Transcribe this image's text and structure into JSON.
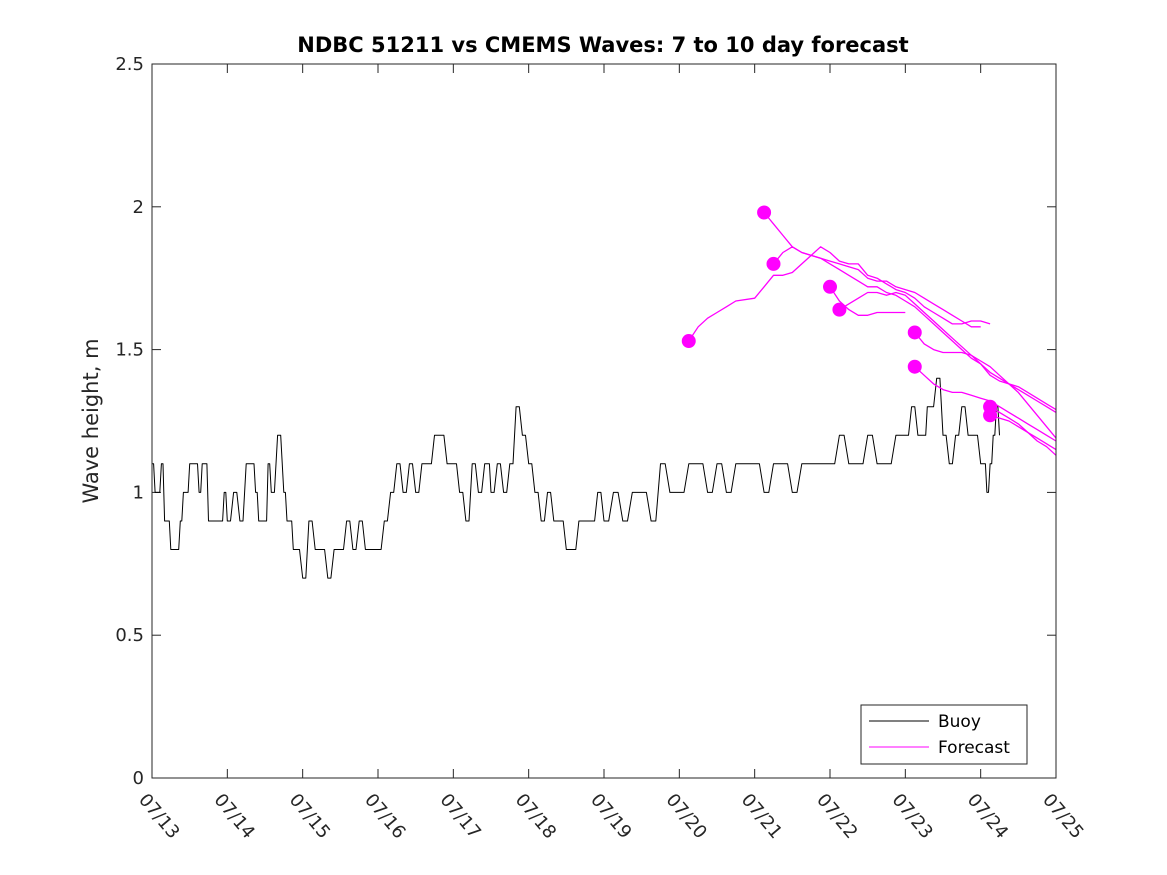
{
  "chart_data": {
    "type": "line",
    "title": "NDBC 51211 vs CMEMS Waves: 7 to 10 day forecast",
    "xlabel": "",
    "ylabel": "Wave height, m",
    "xlim": [
      "07/13",
      "07/25"
    ],
    "ylim": [
      0,
      2.5
    ],
    "x_ticks": [
      "07/13",
      "07/14",
      "07/15",
      "07/16",
      "07/17",
      "07/18",
      "07/19",
      "07/20",
      "07/21",
      "07/22",
      "07/23",
      "07/24",
      "07/25"
    ],
    "y_ticks": [
      "0",
      "0.5",
      "1",
      "1.5",
      "2",
      "2.5"
    ],
    "grid": false,
    "legend": {
      "position": "bottom-right",
      "entries": [
        "Buoy",
        "Forecast"
      ]
    },
    "colors": {
      "buoy": "#000000",
      "forecast": "#ff00ff"
    },
    "series": [
      {
        "name": "Buoy",
        "x": [
          "07/13 00:00",
          "07/13 01:00",
          "07/13 02:00",
          "07/13 03:00",
          "07/13 04:00",
          "07/13 05:00",
          "07/13 06:00",
          "07/13 07:00",
          "07/13 08:00",
          "07/13 09:00",
          "07/13 10:00",
          "07/13 11:00",
          "07/13 12:00",
          "07/13 13:00",
          "07/13 14:00",
          "07/13 15:00",
          "07/13 16:00",
          "07/13 17:00",
          "07/13 18:00",
          "07/13 19:00",
          "07/13 20:00",
          "07/13 21:00",
          "07/13 22:00",
          "07/13 23:00",
          "07/14 00:00",
          "07/14 02:00",
          "07/14 04:00",
          "07/14 06:00",
          "07/14 08:00",
          "07/14 09:00",
          "07/14 10:00",
          "07/14 12:00",
          "07/14 13:00",
          "07/14 14:00",
          "07/14 16:00",
          "07/14 18:00",
          "07/14 19:00",
          "07/14 20:00",
          "07/14 21:00",
          "07/14 22:00",
          "07/15 00:00",
          "07/15 02:00",
          "07/15 04:00",
          "07/15 06:00",
          "07/15 08:00",
          "07/15 10:00",
          "07/15 12:00",
          "07/15 14:00",
          "07/15 16:00",
          "07/15 18:00",
          "07/15 20:00",
          "07/15 22:00",
          "07/16 00:00",
          "07/16 02:00",
          "07/16 04:00",
          "07/16 06:00",
          "07/16 08:00",
          "07/16 10:00",
          "07/16 12:00",
          "07/16 14:00",
          "07/16 16:00",
          "07/16 18:00",
          "07/16 20:00",
          "07/16 22:00",
          "07/17 00:00",
          "07/17 02:00",
          "07/17 04:00",
          "07/17 06:00",
          "07/17 08:00",
          "07/17 10:00",
          "07/17 11:00",
          "07/17 12:00",
          "07/17 14:00",
          "07/17 16:00",
          "07/17 18:00",
          "07/17 20:00",
          "07/17 22:00",
          "07/18 00:00",
          "07/18 02:00",
          "07/18 04:00",
          "07/18 06:00",
          "07/18 08:00",
          "07/18 10:00",
          "07/18 12:00",
          "07/18 14:00",
          "07/18 16:00",
          "07/18 18:00",
          "07/18 20:00",
          "07/18 22:00",
          "07/19 00:00",
          "07/19 03:00",
          "07/19 06:00",
          "07/19 09:00",
          "07/19 12:00",
          "07/19 15:00",
          "07/19 18:00",
          "07/19 21:00",
          "07/20 00:00",
          "07/20 03:00",
          "07/20 06:00",
          "07/20 09:00",
          "07/20 12:00",
          "07/20 15:00",
          "07/20 18:00",
          "07/20 21:00",
          "07/21 00:00",
          "07/21 03:00",
          "07/21 06:00",
          "07/21 09:00",
          "07/21 12:00",
          "07/21 15:00",
          "07/21 18:00",
          "07/21 21:00",
          "07/22 00:00",
          "07/22 03:00",
          "07/22 06:00",
          "07/22 09:00",
          "07/22 12:00",
          "07/22 15:00",
          "07/22 18:00",
          "07/22 21:00",
          "07/23 00:00",
          "07/23 02:00",
          "07/23 04:00",
          "07/23 06:00",
          "07/23 07:00",
          "07/23 08:00",
          "07/23 10:00",
          "07/23 12:00",
          "07/23 14:00",
          "07/23 16:00",
          "07/23 18:00",
          "07/23 20:00",
          "07/23 22:00",
          "07/24 00:00",
          "07/24 01:00",
          "07/24 02:00",
          "07/24 03:00",
          "07/24 04:00",
          "07/24 05:00",
          "07/24 06:00"
        ],
        "values": [
          1.1,
          1.0,
          1.0,
          1.1,
          0.9,
          0.9,
          0.8,
          0.8,
          0.8,
          0.9,
          1.0,
          1.0,
          1.1,
          1.1,
          1.1,
          1.0,
          1.1,
          1.1,
          0.9,
          0.9,
          0.9,
          0.9,
          0.9,
          1.0,
          0.9,
          1.0,
          0.9,
          1.1,
          1.1,
          1.0,
          0.9,
          0.9,
          1.1,
          1.0,
          1.2,
          1.0,
          0.9,
          0.9,
          0.8,
          0.8,
          0.7,
          0.9,
          0.8,
          0.8,
          0.7,
          0.8,
          0.8,
          0.9,
          0.8,
          0.9,
          0.8,
          0.8,
          0.8,
          0.9,
          1.0,
          1.1,
          1.0,
          1.1,
          1.0,
          1.1,
          1.1,
          1.2,
          1.2,
          1.1,
          1.1,
          1.0,
          0.9,
          1.1,
          1.0,
          1.1,
          1.1,
          1.0,
          1.1,
          1.0,
          1.1,
          1.3,
          1.2,
          1.1,
          1.0,
          0.9,
          1.0,
          0.9,
          0.9,
          0.8,
          0.8,
          0.9,
          0.9,
          0.9,
          1.0,
          0.9,
          1.0,
          0.9,
          1.0,
          1.0,
          0.9,
          1.1,
          1.0,
          1.0,
          1.1,
          1.1,
          1.0,
          1.1,
          1.0,
          1.1,
          1.1,
          1.1,
          1.0,
          1.1,
          1.1,
          1.0,
          1.1,
          1.1,
          1.1,
          1.1,
          1.2,
          1.1,
          1.1,
          1.2,
          1.1,
          1.1,
          1.2,
          1.2,
          1.3,
          1.2,
          1.2,
          1.3,
          1.3,
          1.4,
          1.2,
          1.1,
          1.2,
          1.3,
          1.2,
          1.2,
          1.1,
          1.1,
          1.0,
          1.1,
          1.2,
          1.3,
          1.2
        ]
      },
      {
        "name": "Forecast",
        "x": [
          "07/20 03:00",
          "07/20 06:00",
          "07/20 09:00",
          "07/20 12:00",
          "07/20 15:00",
          "07/20 18:00",
          "07/21 00:00",
          "07/21 03:00",
          "07/21 06:00",
          "07/21 09:00",
          "07/21 12:00",
          "07/21 15:00",
          "07/21 18:00",
          "07/21 21:00",
          "07/22 00:00",
          "07/22 03:00",
          "07/22 06:00",
          "07/22 09:00",
          "07/22 12:00",
          "07/22 15:00",
          "07/22 18:00",
          "07/22 21:00",
          "07/23 00:00",
          "07/23 03:00",
          "07/23 06:00",
          "07/23 09:00",
          "07/23 12:00",
          "07/23 15:00",
          "07/23 18:00",
          "07/23 21:00",
          "07/24 00:00",
          "07/24 03:00"
        ],
        "values": [
          1.53,
          1.58,
          1.61,
          1.63,
          1.65,
          1.67,
          1.68,
          1.72,
          1.76,
          1.76,
          1.77,
          1.8,
          1.83,
          1.86,
          1.84,
          1.81,
          1.8,
          1.8,
          1.76,
          1.75,
          1.73,
          1.71,
          1.7,
          1.68,
          1.65,
          1.63,
          1.61,
          1.59,
          1.59,
          1.6,
          1.6,
          1.59
        ]
      },
      {
        "name": "Forecast",
        "x": [
          "07/21 03:00",
          "07/21 06:00",
          "07/21 09:00",
          "07/21 12:00",
          "07/21 15:00",
          "07/21 18:00",
          "07/21 21:00",
          "07/22 00:00",
          "07/22 03:00",
          "07/22 06:00",
          "07/22 09:00",
          "07/22 12:00",
          "07/22 15:00",
          "07/22 18:00",
          "07/22 21:00",
          "07/23 00:00",
          "07/23 03:00",
          "07/23 06:00",
          "07/23 09:00",
          "07/23 12:00",
          "07/23 15:00",
          "07/23 18:00",
          "07/23 21:00",
          "07/24 00:00",
          "07/24 03:00",
          "07/24 06:00",
          "07/24 09:00",
          "07/24 12:00",
          "07/24 15:00",
          "07/24 18:00",
          "07/24 21:00",
          "07/25 00:00"
        ],
        "values": [
          1.98,
          1.94,
          1.9,
          1.86,
          1.84,
          1.83,
          1.82,
          1.8,
          1.78,
          1.76,
          1.74,
          1.72,
          1.72,
          1.7,
          1.69,
          1.67,
          1.65,
          1.62,
          1.59,
          1.56,
          1.53,
          1.5,
          1.47,
          1.45,
          1.42,
          1.4,
          1.38,
          1.37,
          1.35,
          1.33,
          1.31,
          1.29
        ]
      },
      {
        "name": "Forecast",
        "x": [
          "07/22 03:00",
          "07/22 06:00",
          "07/22 09:00",
          "07/22 12:00",
          "07/22 15:00",
          "07/22 18:00",
          "07/22 21:00",
          "07/23 00:00",
          "07/23 03:00",
          "07/23 06:00",
          "07/23 09:00",
          "07/23 12:00",
          "07/23 15:00",
          "07/23 18:00",
          "07/23 21:00",
          "07/24 00:00",
          "07/24 03:00",
          "07/24 06:00",
          "07/24 09:00",
          "07/24 12:00",
          "07/24 15:00",
          "07/24 18:00",
          "07/24 21:00",
          "07/25 00:00"
        ],
        "values": [
          1.64,
          1.66,
          1.68,
          1.7,
          1.7,
          1.69,
          1.7,
          1.69,
          1.66,
          1.63,
          1.6,
          1.57,
          1.54,
          1.51,
          1.48,
          1.45,
          1.41,
          1.39,
          1.38,
          1.36,
          1.34,
          1.32,
          1.3,
          1.28
        ]
      },
      {
        "name": "Forecast",
        "x": [
          "07/21 06:00",
          "07/21 09:00",
          "07/21 12:00",
          "07/21 15:00",
          "07/21 18:00",
          "07/21 21:00",
          "07/22 00:00",
          "07/22 03:00",
          "07/22 06:00",
          "07/22 09:00",
          "07/22 12:00",
          "07/22 15:00",
          "07/22 18:00",
          "07/22 21:00",
          "07/23 00:00",
          "07/23 03:00",
          "07/23 06:00",
          "07/23 09:00",
          "07/23 12:00",
          "07/23 15:00",
          "07/23 18:00",
          "07/23 21:00",
          "07/24 00:00"
        ],
        "values": [
          1.8,
          1.84,
          1.86,
          1.84,
          1.83,
          1.82,
          1.81,
          1.8,
          1.79,
          1.78,
          1.75,
          1.74,
          1.74,
          1.72,
          1.71,
          1.7,
          1.68,
          1.66,
          1.64,
          1.62,
          1.6,
          1.58,
          1.58
        ]
      },
      {
        "name": "Forecast",
        "x": [
          "07/22 00:00",
          "07/22 03:00",
          "07/22 06:00",
          "07/22 09:00",
          "07/22 12:00",
          "07/22 15:00",
          "07/22 18:00",
          "07/22 21:00",
          "07/23 00:00"
        ],
        "values": [
          1.72,
          1.67,
          1.64,
          1.62,
          1.62,
          1.63,
          1.63,
          1.63,
          1.63
        ]
      },
      {
        "name": "Forecast",
        "x": [
          "07/23 03:00",
          "07/23 06:00",
          "07/23 09:00",
          "07/23 12:00",
          "07/23 15:00",
          "07/23 18:00",
          "07/23 21:00",
          "07/24 00:00",
          "07/24 03:00",
          "07/24 06:00",
          "07/24 09:00",
          "07/24 12:00",
          "07/24 15:00",
          "07/24 18:00",
          "07/24 21:00",
          "07/25 00:00"
        ],
        "values": [
          1.56,
          1.52,
          1.5,
          1.49,
          1.49,
          1.49,
          1.48,
          1.46,
          1.44,
          1.41,
          1.38,
          1.35,
          1.31,
          1.27,
          1.23,
          1.19
        ]
      },
      {
        "name": "Forecast",
        "x": [
          "07/23 03:00",
          "07/23 06:00",
          "07/23 09:00",
          "07/23 12:00",
          "07/23 15:00",
          "07/23 18:00",
          "07/23 21:00",
          "07/24 00:00",
          "07/24 03:00",
          "07/24 06:00",
          "07/24 09:00",
          "07/24 12:00",
          "07/24 15:00",
          "07/24 18:00",
          "07/24 21:00",
          "07/25 00:00"
        ],
        "values": [
          1.44,
          1.41,
          1.38,
          1.36,
          1.35,
          1.35,
          1.34,
          1.33,
          1.32,
          1.3,
          1.28,
          1.26,
          1.24,
          1.22,
          1.2,
          1.18
        ]
      },
      {
        "name": "Forecast",
        "x": [
          "07/24 03:00",
          "07/24 06:00",
          "07/24 09:00",
          "07/24 12:00",
          "07/24 15:00",
          "07/24 18:00",
          "07/24 21:00",
          "07/25 00:00"
        ],
        "values": [
          1.3,
          1.28,
          1.26,
          1.24,
          1.21,
          1.18,
          1.16,
          1.13
        ]
      },
      {
        "name": "Forecast",
        "x": [
          "07/24 03:00",
          "07/24 06:00",
          "07/24 09:00",
          "07/24 12:00",
          "07/24 15:00",
          "07/24 18:00",
          "07/24 21:00",
          "07/25 00:00"
        ],
        "values": [
          1.27,
          1.26,
          1.25,
          1.23,
          1.21,
          1.19,
          1.17,
          1.15
        ]
      }
    ]
  }
}
